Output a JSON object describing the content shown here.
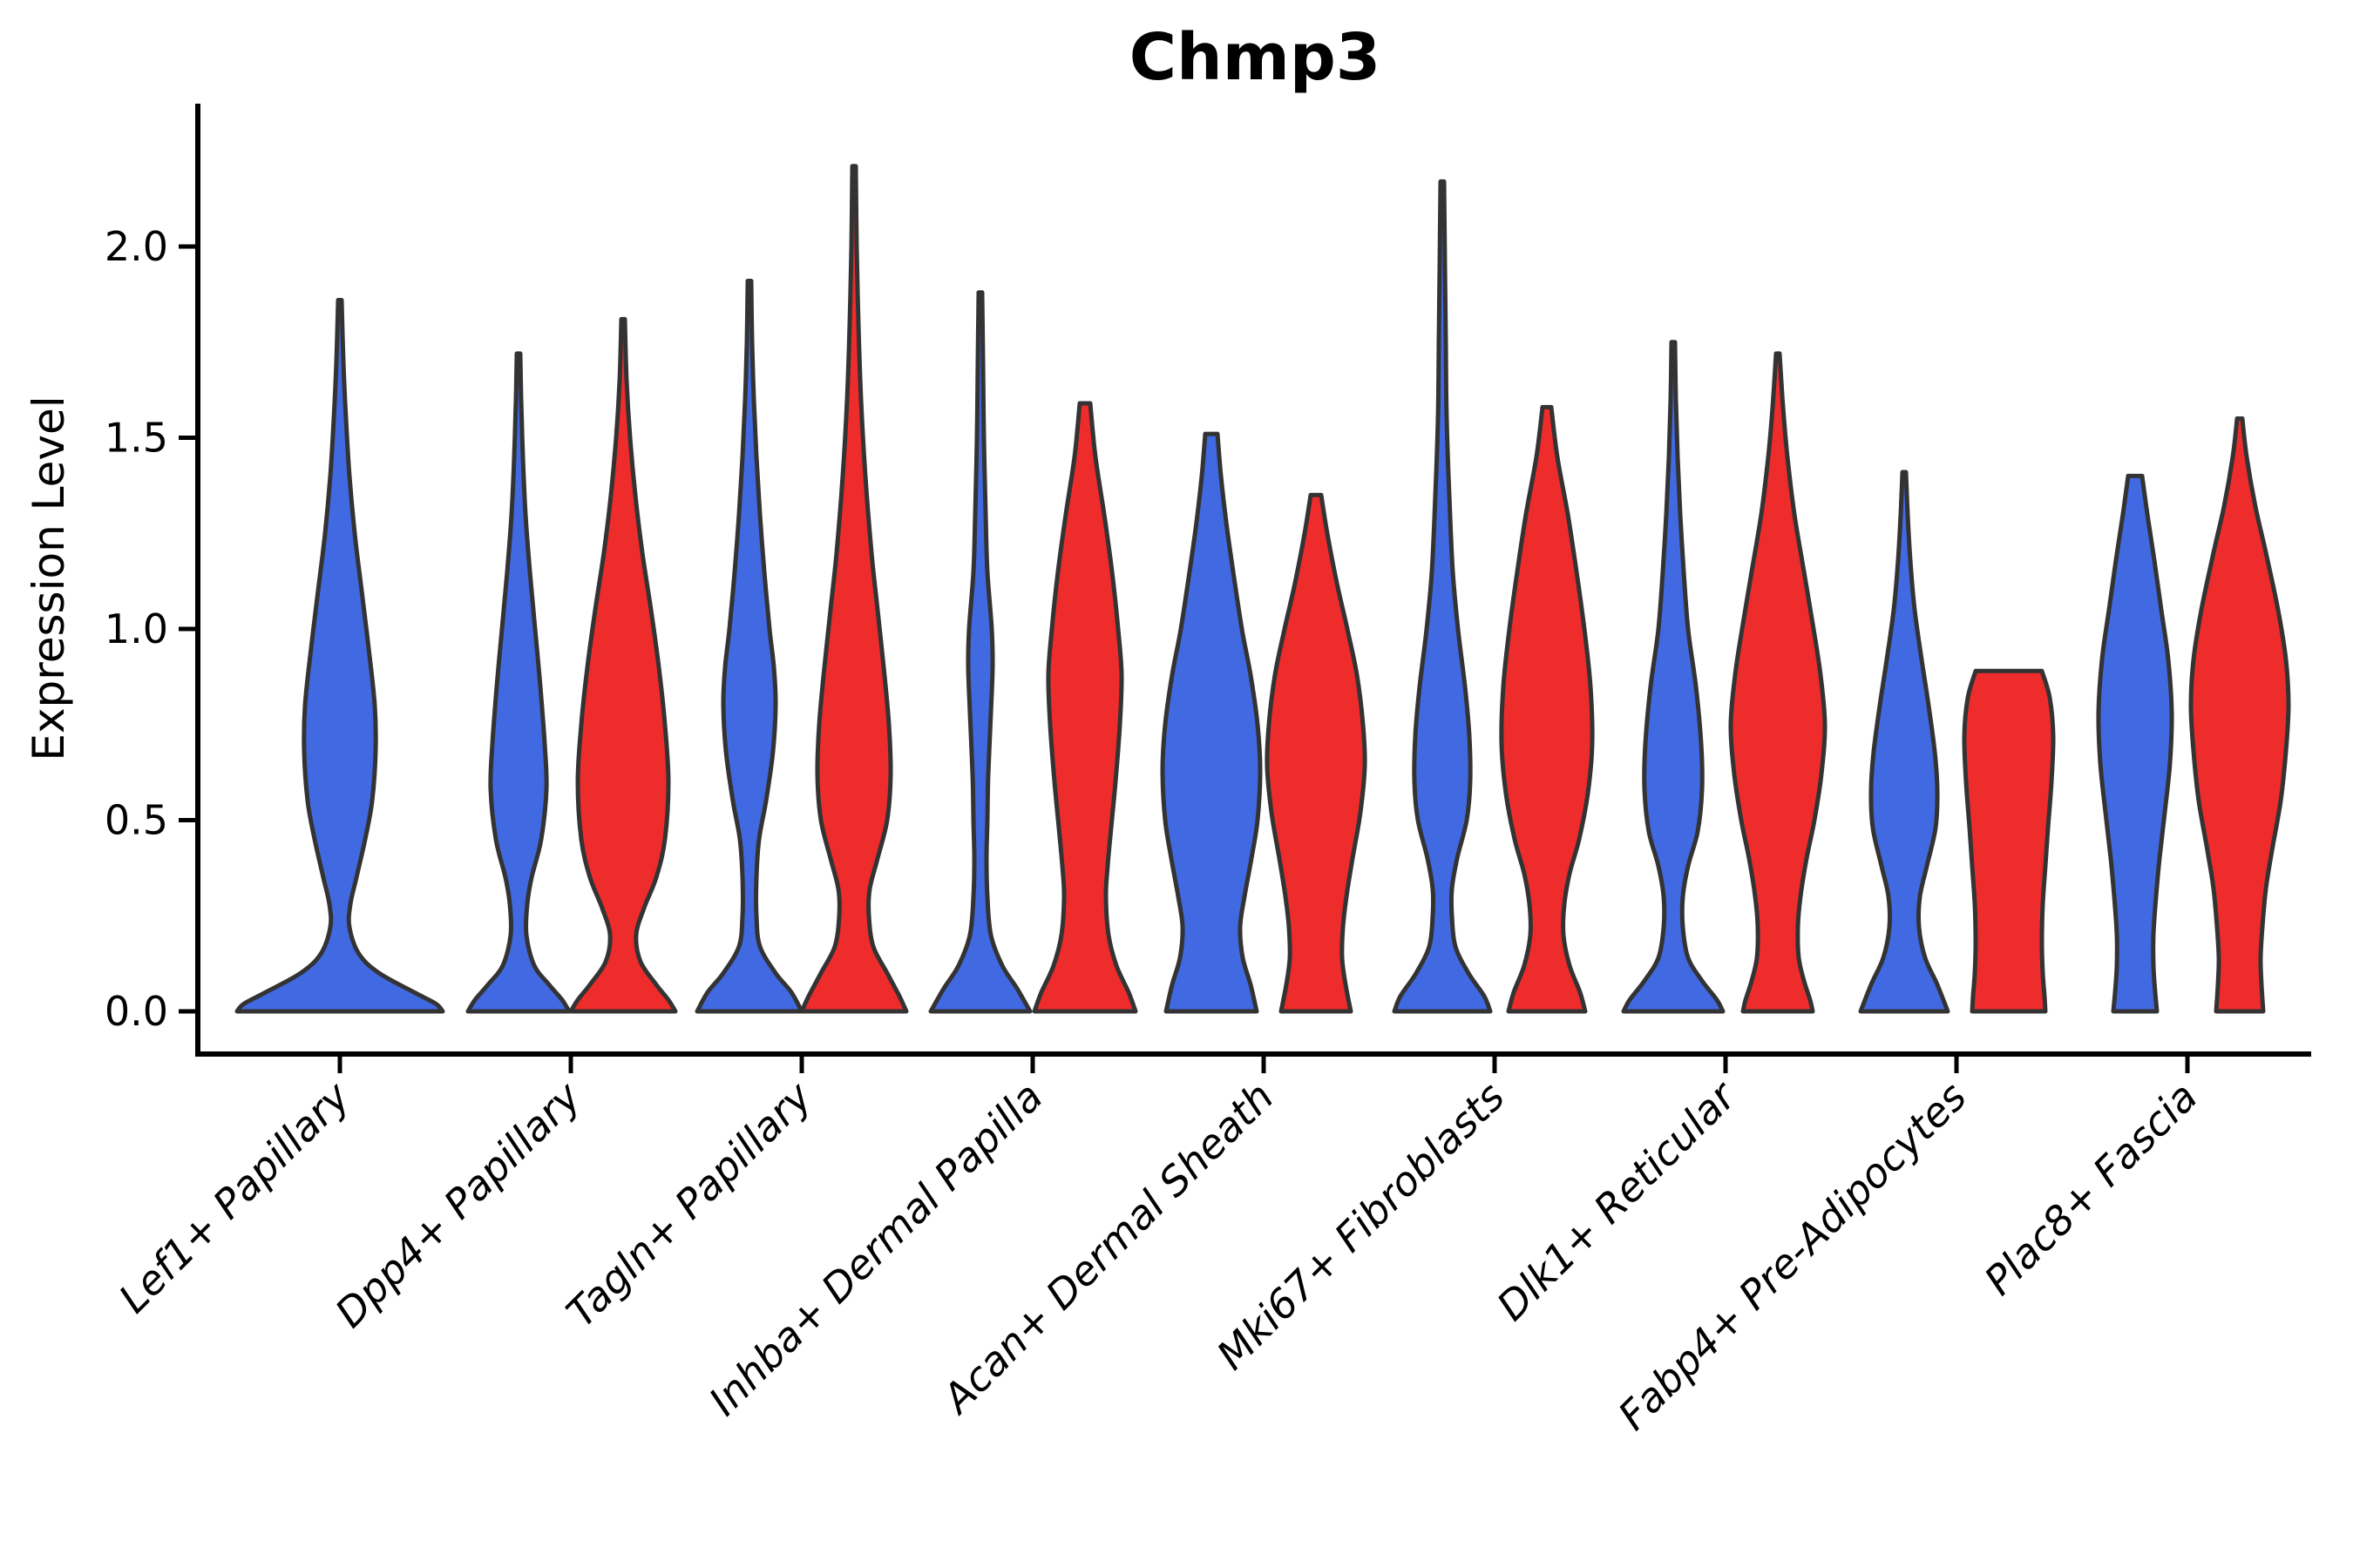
{
  "chart_data": {
    "type": "violin",
    "title": "Chmp3",
    "ylabel": "Expression Level",
    "xlabel": "",
    "ylim": [
      0,
      2.3
    ],
    "yticks": [
      0.0,
      0.5,
      1.0,
      1.5,
      2.0
    ],
    "grid": false,
    "legend": null,
    "colors": {
      "blue": "#4169E1",
      "red": "#EE2C2C",
      "outline": "#333333",
      "axis": "#000000"
    },
    "categories": [
      "Lef1+ Papillary",
      "Dpp4+ Papillary",
      "Tagln+ Papillary",
      "Inhba+ Dermal Papilla",
      "Acan+ Dermal Sheath",
      "Mki67+ Fibroblasts",
      "Dlk1+ Reticular",
      "Fabp4+ Pre-Adipocytes",
      "Plac8+ Fascia"
    ],
    "violins": [
      {
        "category": "Lef1+ Papillary",
        "split": "blue",
        "centered": true,
        "max_expression": 1.86,
        "profile": [
          [
            1.86,
            2
          ],
          [
            1.7,
            4
          ],
          [
            1.55,
            7
          ],
          [
            1.4,
            11
          ],
          [
            1.25,
            17
          ],
          [
            1.1,
            25
          ],
          [
            0.95,
            33
          ],
          [
            0.8,
            40
          ],
          [
            0.68,
            41
          ],
          [
            0.55,
            37
          ],
          [
            0.45,
            29
          ],
          [
            0.35,
            19
          ],
          [
            0.28,
            12
          ],
          [
            0.22,
            11
          ],
          [
            0.15,
            22
          ],
          [
            0.1,
            45
          ],
          [
            0.05,
            85
          ],
          [
            0.02,
            110
          ],
          [
            0.0,
            118
          ]
        ]
      },
      {
        "category": "Dpp4+ Papillary",
        "split": "blue",
        "centered": false,
        "max_expression": 1.72,
        "profile": [
          [
            1.72,
            2
          ],
          [
            1.6,
            3
          ],
          [
            1.45,
            5
          ],
          [
            1.3,
            8
          ],
          [
            1.15,
            13
          ],
          [
            1.0,
            19
          ],
          [
            0.85,
            25
          ],
          [
            0.7,
            30
          ],
          [
            0.58,
            32
          ],
          [
            0.45,
            26
          ],
          [
            0.35,
            15
          ],
          [
            0.28,
            10
          ],
          [
            0.2,
            9
          ],
          [
            0.12,
            18
          ],
          [
            0.07,
            35
          ],
          [
            0.03,
            50
          ],
          [
            0.0,
            58
          ]
        ]
      },
      {
        "category": "Dpp4+ Papillary",
        "split": "red",
        "centered": false,
        "max_expression": 1.81,
        "profile": [
          [
            1.81,
            2
          ],
          [
            1.65,
            4
          ],
          [
            1.5,
            8
          ],
          [
            1.35,
            14
          ],
          [
            1.2,
            22
          ],
          [
            1.05,
            32
          ],
          [
            0.9,
            41
          ],
          [
            0.75,
            48
          ],
          [
            0.6,
            52
          ],
          [
            0.45,
            48
          ],
          [
            0.35,
            38
          ],
          [
            0.27,
            24
          ],
          [
            0.2,
            15
          ],
          [
            0.13,
            20
          ],
          [
            0.07,
            38
          ],
          [
            0.03,
            52
          ],
          [
            0.0,
            60
          ]
        ]
      },
      {
        "category": "Tagln+ Papillary",
        "split": "blue",
        "centered": false,
        "max_expression": 1.91,
        "profile": [
          [
            1.91,
            2
          ],
          [
            1.75,
            3
          ],
          [
            1.6,
            5
          ],
          [
            1.45,
            8
          ],
          [
            1.3,
            12
          ],
          [
            1.15,
            17
          ],
          [
            1.0,
            23
          ],
          [
            0.9,
            28
          ],
          [
            0.8,
            30
          ],
          [
            0.68,
            27
          ],
          [
            0.55,
            19
          ],
          [
            0.45,
            11
          ],
          [
            0.35,
            8
          ],
          [
            0.25,
            8
          ],
          [
            0.17,
            12
          ],
          [
            0.1,
            30
          ],
          [
            0.05,
            48
          ],
          [
            0.0,
            60
          ]
        ]
      },
      {
        "category": "Tagln+ Papillary",
        "split": "red",
        "centered": false,
        "max_expression": 2.21,
        "profile": [
          [
            2.21,
            2
          ],
          [
            2.0,
            3
          ],
          [
            1.8,
            5
          ],
          [
            1.6,
            8
          ],
          [
            1.4,
            13
          ],
          [
            1.2,
            20
          ],
          [
            1.05,
            27
          ],
          [
            0.9,
            34
          ],
          [
            0.75,
            40
          ],
          [
            0.62,
            42
          ],
          [
            0.5,
            38
          ],
          [
            0.4,
            27
          ],
          [
            0.32,
            18
          ],
          [
            0.25,
            17
          ],
          [
            0.17,
            22
          ],
          [
            0.1,
            38
          ],
          [
            0.04,
            52
          ],
          [
            0.0,
            60
          ]
        ]
      },
      {
        "category": "Inhba+ Dermal Papilla",
        "split": "blue",
        "centered": false,
        "max_expression": 1.88,
        "profile": [
          [
            1.88,
            2
          ],
          [
            1.7,
            3
          ],
          [
            1.5,
            4
          ],
          [
            1.3,
            6
          ],
          [
            1.15,
            8
          ],
          [
            1.0,
            13
          ],
          [
            0.9,
            14
          ],
          [
            0.78,
            12
          ],
          [
            0.62,
            9
          ],
          [
            0.5,
            8
          ],
          [
            0.4,
            7
          ],
          [
            0.3,
            8
          ],
          [
            0.2,
            12
          ],
          [
            0.12,
            25
          ],
          [
            0.06,
            42
          ],
          [
            0.0,
            57
          ]
        ]
      },
      {
        "category": "Inhba+ Dermal Papilla",
        "split": "red",
        "centered": false,
        "max_expression": 1.59,
        "profile": [
          [
            1.59,
            6
          ],
          [
            1.45,
            12
          ],
          [
            1.3,
            22
          ],
          [
            1.15,
            31
          ],
          [
            1.0,
            38
          ],
          [
            0.88,
            42
          ],
          [
            0.75,
            40
          ],
          [
            0.6,
            35
          ],
          [
            0.48,
            30
          ],
          [
            0.38,
            26
          ],
          [
            0.3,
            24
          ],
          [
            0.2,
            27
          ],
          [
            0.12,
            36
          ],
          [
            0.05,
            50
          ],
          [
            0.0,
            58
          ]
        ]
      },
      {
        "category": "Acan+ Dermal Sheath",
        "split": "blue",
        "centered": false,
        "max_expression": 1.51,
        "profile": [
          [
            1.51,
            7
          ],
          [
            1.4,
            11
          ],
          [
            1.28,
            17
          ],
          [
            1.15,
            25
          ],
          [
            1.0,
            35
          ],
          [
            0.88,
            45
          ],
          [
            0.75,
            53
          ],
          [
            0.63,
            56
          ],
          [
            0.5,
            53
          ],
          [
            0.4,
            46
          ],
          [
            0.3,
            38
          ],
          [
            0.22,
            33
          ],
          [
            0.14,
            36
          ],
          [
            0.07,
            45
          ],
          [
            0.0,
            52
          ]
        ]
      },
      {
        "category": "Acan+ Dermal Sheath",
        "split": "red",
        "centered": false,
        "max_expression": 1.35,
        "profile": [
          [
            1.35,
            6
          ],
          [
            1.25,
            13
          ],
          [
            1.12,
            24
          ],
          [
            1.0,
            36
          ],
          [
            0.88,
            47
          ],
          [
            0.75,
            54
          ],
          [
            0.64,
            56
          ],
          [
            0.52,
            51
          ],
          [
            0.4,
            42
          ],
          [
            0.3,
            35
          ],
          [
            0.22,
            31
          ],
          [
            0.14,
            30
          ],
          [
            0.07,
            34
          ],
          [
            0.0,
            40
          ]
        ]
      },
      {
        "category": "Mki67+ Fibroblasts",
        "split": "blue",
        "centered": false,
        "max_expression": 2.17,
        "profile": [
          [
            2.17,
            2
          ],
          [
            1.95,
            3
          ],
          [
            1.75,
            4
          ],
          [
            1.55,
            5
          ],
          [
            1.35,
            8
          ],
          [
            1.15,
            12
          ],
          [
            1.0,
            18
          ],
          [
            0.85,
            26
          ],
          [
            0.72,
            31
          ],
          [
            0.6,
            32
          ],
          [
            0.5,
            28
          ],
          [
            0.4,
            17
          ],
          [
            0.32,
            11
          ],
          [
            0.25,
            11
          ],
          [
            0.17,
            15
          ],
          [
            0.1,
            30
          ],
          [
            0.04,
            48
          ],
          [
            0.0,
            55
          ]
        ]
      },
      {
        "category": "Mki67+ Fibroblasts",
        "split": "red",
        "centered": false,
        "max_expression": 1.58,
        "profile": [
          [
            1.58,
            5
          ],
          [
            1.45,
            12
          ],
          [
            1.3,
            24
          ],
          [
            1.15,
            34
          ],
          [
            1.0,
            43
          ],
          [
            0.85,
            50
          ],
          [
            0.7,
            52
          ],
          [
            0.57,
            47
          ],
          [
            0.45,
            37
          ],
          [
            0.36,
            26
          ],
          [
            0.28,
            20
          ],
          [
            0.2,
            19
          ],
          [
            0.12,
            26
          ],
          [
            0.05,
            38
          ],
          [
            0.0,
            44
          ]
        ]
      },
      {
        "category": "Dlk1+ Reticular",
        "split": "blue",
        "centered": false,
        "max_expression": 1.75,
        "profile": [
          [
            1.75,
            2
          ],
          [
            1.6,
            3
          ],
          [
            1.45,
            5
          ],
          [
            1.3,
            8
          ],
          [
            1.15,
            12
          ],
          [
            1.0,
            17
          ],
          [
            0.85,
            26
          ],
          [
            0.7,
            32
          ],
          [
            0.58,
            33
          ],
          [
            0.47,
            28
          ],
          [
            0.38,
            17
          ],
          [
            0.3,
            11
          ],
          [
            0.22,
            11
          ],
          [
            0.14,
            17
          ],
          [
            0.08,
            33
          ],
          [
            0.03,
            50
          ],
          [
            0.0,
            57
          ]
        ]
      },
      {
        "category": "Dlk1+ Reticular",
        "split": "red",
        "centered": false,
        "max_expression": 1.72,
        "profile": [
          [
            1.72,
            2
          ],
          [
            1.58,
            6
          ],
          [
            1.45,
            11
          ],
          [
            1.3,
            19
          ],
          [
            1.15,
            30
          ],
          [
            1.0,
            41
          ],
          [
            0.88,
            49
          ],
          [
            0.75,
            54
          ],
          [
            0.62,
            50
          ],
          [
            0.5,
            42
          ],
          [
            0.4,
            33
          ],
          [
            0.3,
            26
          ],
          [
            0.22,
            23
          ],
          [
            0.14,
            24
          ],
          [
            0.08,
            30
          ],
          [
            0.03,
            37
          ],
          [
            0.0,
            40
          ]
        ]
      },
      {
        "category": "Fabp4+ Pre-Adipocytes",
        "split": "blue",
        "centered": false,
        "max_expression": 1.41,
        "profile": [
          [
            1.41,
            2
          ],
          [
            1.3,
            4
          ],
          [
            1.18,
            7
          ],
          [
            1.05,
            12
          ],
          [
            0.92,
            20
          ],
          [
            0.8,
            28
          ],
          [
            0.68,
            35
          ],
          [
            0.58,
            38
          ],
          [
            0.48,
            36
          ],
          [
            0.38,
            26
          ],
          [
            0.3,
            18
          ],
          [
            0.22,
            17
          ],
          [
            0.14,
            24
          ],
          [
            0.07,
            38
          ],
          [
            0.0,
            50
          ]
        ]
      },
      {
        "category": "Fabp4+ Pre-Adipocytes",
        "split": "red",
        "centered": false,
        "max_expression": 0.89,
        "profile": [
          [
            0.89,
            38
          ],
          [
            0.82,
            47
          ],
          [
            0.72,
            51
          ],
          [
            0.6,
            49
          ],
          [
            0.48,
            45
          ],
          [
            0.38,
            42
          ],
          [
            0.28,
            39
          ],
          [
            0.18,
            38
          ],
          [
            0.1,
            39
          ],
          [
            0.04,
            41
          ],
          [
            0.0,
            42
          ]
        ]
      },
      {
        "category": "Plac8+ Fascia",
        "split": "blue",
        "centered": false,
        "max_expression": 1.4,
        "profile": [
          [
            1.4,
            8
          ],
          [
            1.3,
            14
          ],
          [
            1.18,
            22
          ],
          [
            1.05,
            30
          ],
          [
            0.92,
            38
          ],
          [
            0.78,
            42
          ],
          [
            0.65,
            40
          ],
          [
            0.52,
            34
          ],
          [
            0.4,
            28
          ],
          [
            0.3,
            24
          ],
          [
            0.2,
            21
          ],
          [
            0.12,
            21
          ],
          [
            0.05,
            23
          ],
          [
            0.0,
            25
          ]
        ]
      },
      {
        "category": "Plac8+ Fascia",
        "split": "red",
        "centered": false,
        "max_expression": 1.55,
        "profile": [
          [
            1.55,
            3
          ],
          [
            1.45,
            8
          ],
          [
            1.32,
            18
          ],
          [
            1.2,
            30
          ],
          [
            1.05,
            44
          ],
          [
            0.92,
            53
          ],
          [
            0.8,
            56
          ],
          [
            0.68,
            53
          ],
          [
            0.55,
            47
          ],
          [
            0.42,
            37
          ],
          [
            0.32,
            30
          ],
          [
            0.22,
            26
          ],
          [
            0.14,
            24
          ],
          [
            0.07,
            25
          ],
          [
            0.0,
            27
          ]
        ]
      }
    ]
  }
}
